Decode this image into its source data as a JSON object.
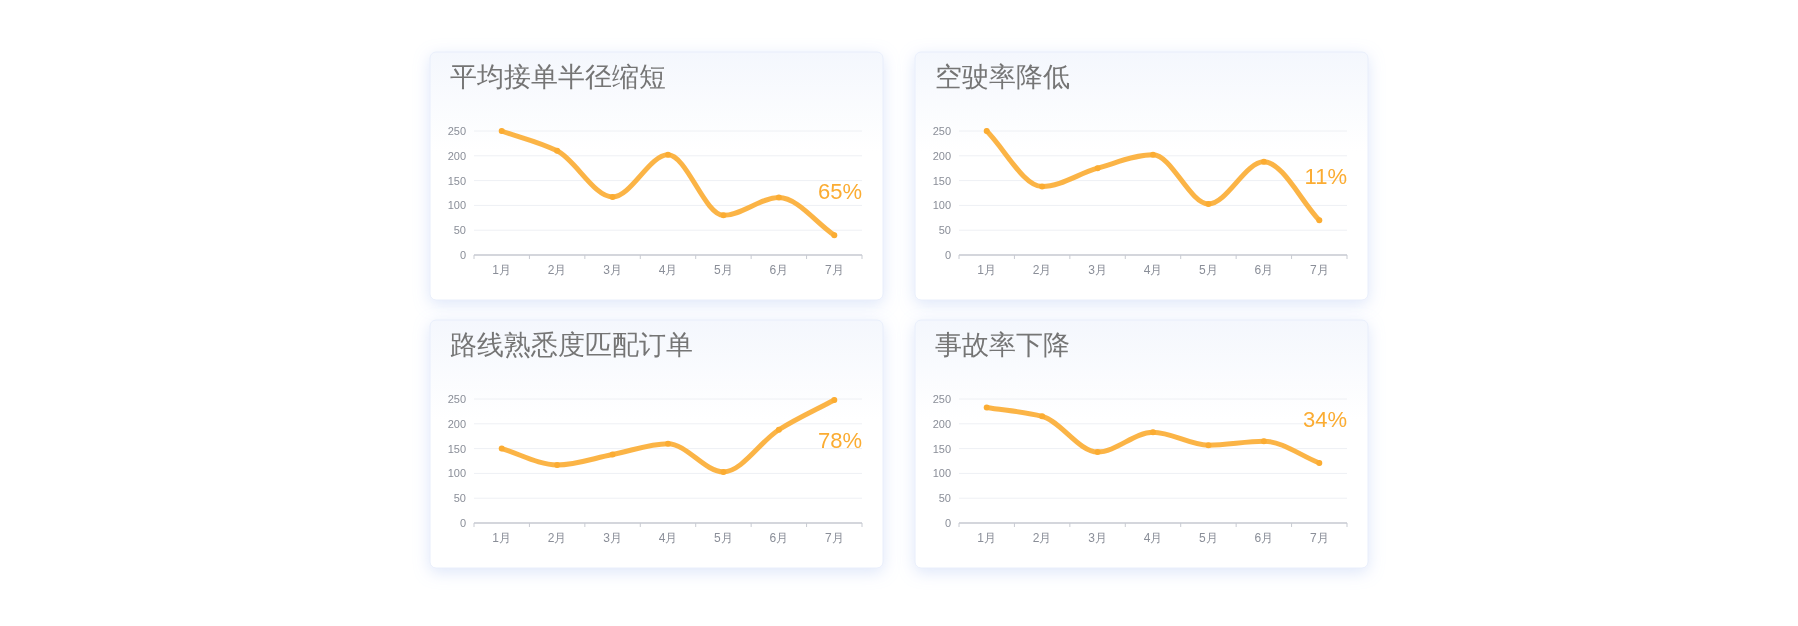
{
  "chart_data": [
    {
      "type": "line",
      "title": "平均接单半径缩短",
      "categories": [
        "1月",
        "2月",
        "3月",
        "4月",
        "5月",
        "6月",
        "7月"
      ],
      "ylim": [
        0,
        250
      ],
      "yticks": [
        0,
        50,
        100,
        150,
        200,
        250
      ],
      "grid": "y",
      "marker": "circle",
      "series": [
        {
          "color": "#fbac32",
          "values": [
            250,
            210,
            117,
            202,
            80,
            116,
            40
          ]
        }
      ],
      "annotations": [
        "65%"
      ]
    },
    {
      "type": "line",
      "title": "空驶率降低",
      "categories": [
        "1月",
        "2月",
        "3月",
        "4月",
        "5月",
        "6月",
        "7月"
      ],
      "ylim": [
        0,
        250
      ],
      "yticks": [
        0,
        50,
        100,
        150,
        200,
        250
      ],
      "grid": "y",
      "marker": "circle",
      "series": [
        {
          "color": "#fbac32",
          "values": [
            250,
            138,
            175,
            202,
            103,
            188,
            70
          ]
        }
      ],
      "annotations": [
        "11%"
      ]
    },
    {
      "type": "line",
      "title": "路线熟悉度匹配订单",
      "categories": [
        "1月",
        "2月",
        "3月",
        "4月",
        "5月",
        "6月",
        "7月"
      ],
      "ylim": [
        0,
        250
      ],
      "yticks": [
        0,
        50,
        100,
        150,
        200,
        250
      ],
      "grid": "y",
      "marker": "circle",
      "series": [
        {
          "color": "#fbac32",
          "values": [
            150,
            117,
            138,
            160,
            103,
            188,
            248
          ]
        }
      ],
      "annotations": [
        "78%"
      ]
    },
    {
      "type": "line",
      "title": "事故率下降",
      "categories": [
        "1月",
        "2月",
        "3月",
        "4月",
        "5月",
        "6月",
        "7月"
      ],
      "ylim": [
        0,
        250
      ],
      "yticks": [
        0,
        50,
        100,
        150,
        200,
        250
      ],
      "grid": "y",
      "marker": "circle",
      "series": [
        {
          "color": "#fbac32",
          "values": [
            233,
            215,
            143,
            183,
            157,
            165,
            121
          ]
        }
      ],
      "annotations": [
        "34%"
      ]
    }
  ]
}
